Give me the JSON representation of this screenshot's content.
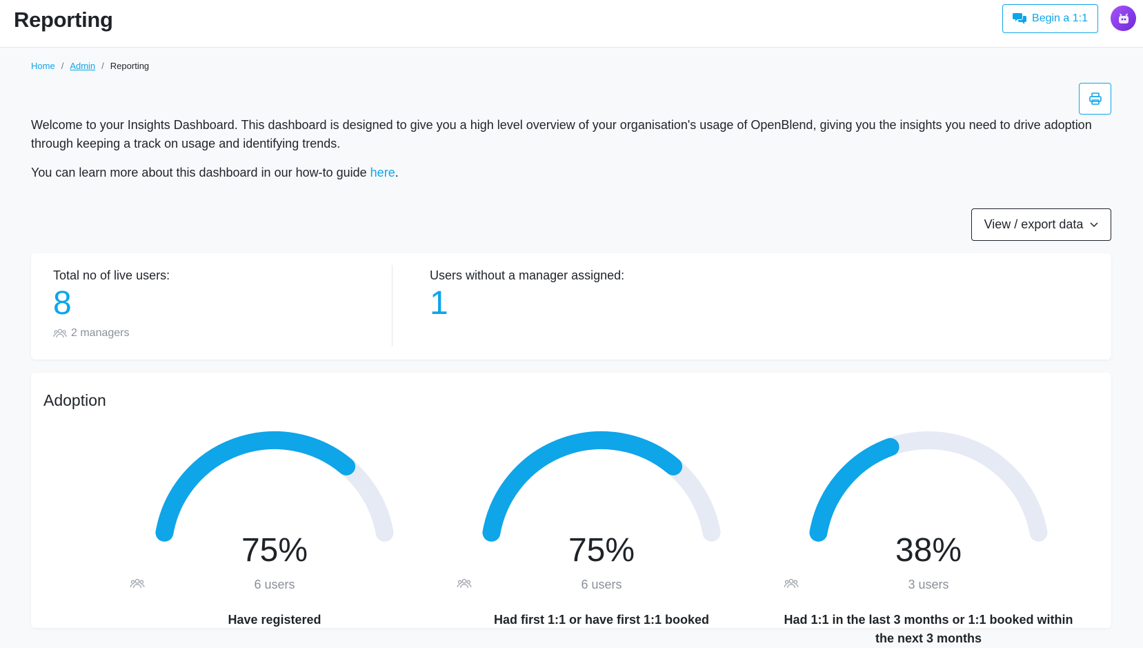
{
  "header": {
    "title": "Reporting",
    "begin_label": "Begin a 1:1"
  },
  "breadcrumb": {
    "home": "Home",
    "admin": "Admin",
    "current": "Reporting",
    "separator": "/"
  },
  "intro": {
    "text": "Welcome to your Insights Dashboard. This dashboard is designed to give you a high level overview of your organisation's usage of OpenBlend, giving you the insights you need to drive adoption through keeping a track on usage and identifying trends.",
    "guide_prefix": "You can learn more about this dashboard in our how-to guide ",
    "guide_link": "here",
    "guide_suffix": "."
  },
  "export": {
    "label": "View / export data"
  },
  "stats": {
    "live_users": {
      "label": "Total no of live users:",
      "value": "8",
      "sub": "2 managers"
    },
    "no_manager": {
      "label": "Users without a manager assigned:",
      "value": "1"
    }
  },
  "adoption": {
    "title": "Adoption",
    "gauges": [
      {
        "percent": "75%",
        "fraction": 0.75,
        "users": "6 users",
        "label": "Have registered"
      },
      {
        "percent": "75%",
        "fraction": 0.75,
        "users": "6 users",
        "label": "Had first 1:1 or have first 1:1 booked"
      },
      {
        "percent": "38%",
        "fraction": 0.375,
        "users": "3 users",
        "label": "Had 1:1 in the last 3 months or 1:1 booked within the next 3 months"
      }
    ]
  },
  "colors": {
    "accent": "#0ea5e9",
    "gauge_track": "#e6eaf5",
    "text": "#1f2328",
    "muted": "#8a9099"
  },
  "icons": {
    "begin": "chat-bubbles-icon",
    "print": "printer-icon",
    "dropdown": "chevron-down-icon",
    "users": "users-icon",
    "avatar": "user-avatar"
  }
}
